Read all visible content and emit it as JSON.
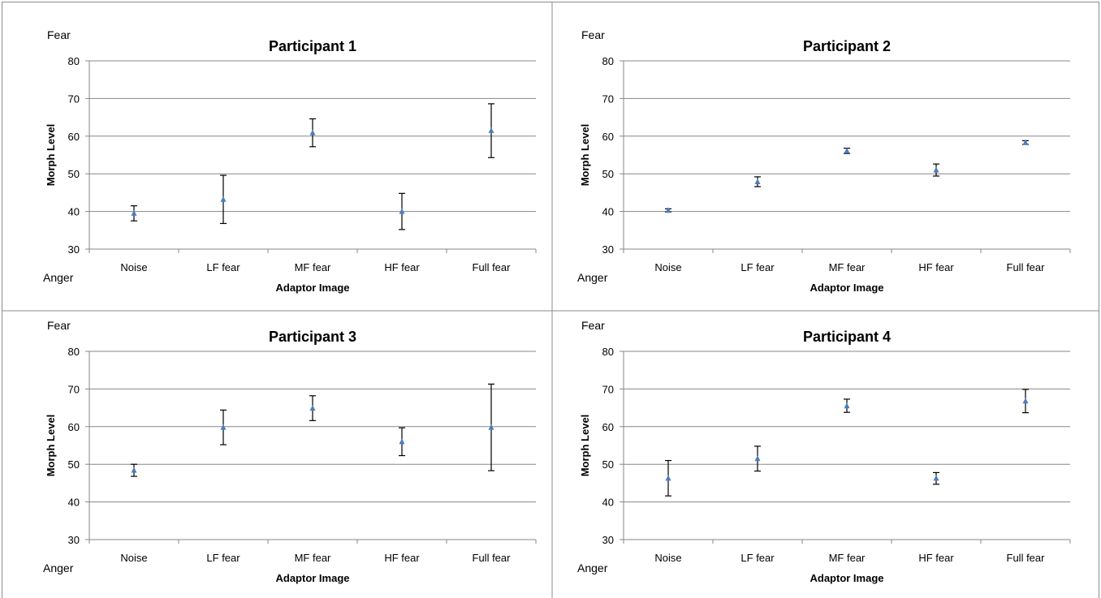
{
  "chart_data": [
    {
      "type": "scatter",
      "title": "Participant 1",
      "xlabel": "Adaptor Image",
      "ylabel": "Morph Level",
      "top_label": "Fear",
      "bottom_label": "Anger",
      "categories": [
        "Noise",
        "LF fear",
        "MF fear",
        "HF fear",
        "Full fear"
      ],
      "yticks": [
        "30",
        "40",
        "50",
        "60",
        "70",
        "80"
      ],
      "ylim": [
        30,
        80
      ],
      "grid": true,
      "values": [
        39.5,
        43.2,
        60.9,
        40.0,
        61.5
      ],
      "error_low": [
        37.5,
        36.8,
        57.2,
        35.2,
        54.3
      ],
      "error_high": [
        41.5,
        49.6,
        64.6,
        44.8,
        68.6
      ]
    },
    {
      "type": "scatter",
      "title": "Participant 2",
      "xlabel": "Adaptor Image",
      "ylabel": "Morph Level",
      "top_label": "Fear",
      "bottom_label": "Anger",
      "categories": [
        "Noise",
        "LF fear",
        "MF fear",
        "HF fear",
        "Full fear"
      ],
      "yticks": [
        "30",
        "40",
        "50",
        "60",
        "70",
        "80"
      ],
      "ylim": [
        30,
        80
      ],
      "grid": true,
      "values": [
        40.3,
        47.9,
        56.1,
        51.0,
        58.3
      ],
      "error_low": [
        39.9,
        46.6,
        55.4,
        49.4,
        57.8
      ],
      "error_high": [
        40.7,
        49.2,
        56.8,
        52.6,
        58.8
      ]
    },
    {
      "type": "scatter",
      "title": "Participant 3",
      "xlabel": "Adaptor Image",
      "ylabel": "Morph Level",
      "top_label": "Fear",
      "bottom_label": "Anger",
      "categories": [
        "Noise",
        "LF fear",
        "MF fear",
        "HF fear",
        "Full fear"
      ],
      "yticks": [
        "30",
        "40",
        "50",
        "60",
        "70",
        "80"
      ],
      "ylim": [
        30,
        80
      ],
      "grid": true,
      "values": [
        48.4,
        59.8,
        64.9,
        56.0,
        59.8
      ],
      "error_low": [
        46.8,
        55.2,
        61.6,
        52.3,
        48.3
      ],
      "error_high": [
        50.0,
        64.4,
        68.2,
        59.7,
        71.3
      ]
    },
    {
      "type": "scatter",
      "title": "Participant 4",
      "xlabel": "Adaptor Image",
      "ylabel": "Morph Level",
      "top_label": "Fear",
      "bottom_label": "Anger",
      "categories": [
        "Noise",
        "LF fear",
        "MF fear",
        "HF fear",
        "Full fear"
      ],
      "yticks": [
        "30",
        "40",
        "50",
        "60",
        "70",
        "80"
      ],
      "ylim": [
        30,
        80
      ],
      "grid": true,
      "values": [
        46.3,
        51.5,
        65.5,
        46.3,
        66.8
      ],
      "error_low": [
        41.6,
        48.2,
        63.8,
        44.7,
        63.7
      ],
      "error_high": [
        51.0,
        54.8,
        67.3,
        47.8,
        69.9
      ]
    }
  ],
  "colors": {
    "marker": "#4a7ebb",
    "errorbar": "#000000",
    "gridline": "#878787",
    "border": "#8c8c8c"
  }
}
